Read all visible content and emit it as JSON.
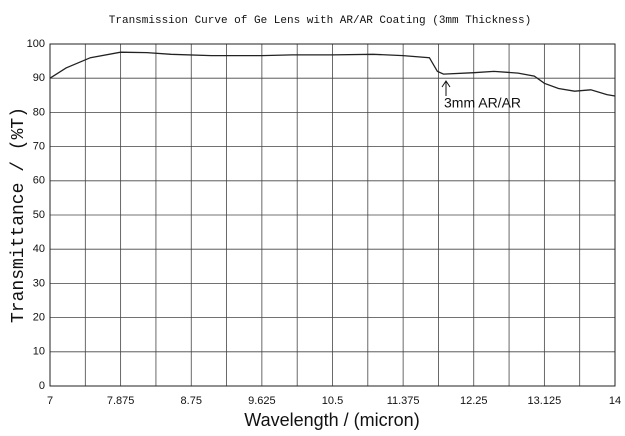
{
  "chart_data": {
    "type": "line",
    "title": "Transmission Curve of Ge Lens with AR/AR Coating (3mm Thickness)",
    "x_label": "Wavelength / (micron)",
    "y_label": "Transmittance / (%T)",
    "annotation": "3mm AR/AR",
    "annotation_color": "#e8a317",
    "x": [
      7,
      7.2,
      7.5,
      7.875,
      8.2,
      8.5,
      9,
      9.625,
      10,
      10.5,
      11,
      11.375,
      11.7,
      11.8,
      11.875,
      12.25,
      12.5,
      12.8,
      13.0,
      13.125,
      13.3,
      13.5,
      13.7,
      13.9,
      14
    ],
    "series": [
      {
        "name": "3mm AR/AR",
        "color": "#222222",
        "values": [
          90,
          93,
          96,
          97.6,
          97.5,
          97,
          96.6,
          96.6,
          96.8,
          96.8,
          97,
          96.6,
          96,
          92,
          91.2,
          91.6,
          92,
          91.5,
          90.6,
          88.5,
          87,
          86.2,
          86.6,
          85.2,
          84.8
        ]
      }
    ],
    "xlim": [
      7,
      14
    ],
    "xticks": [
      7,
      7.875,
      8.75,
      9.625,
      10.5,
      11.375,
      12.25,
      13.125,
      14
    ],
    "ylim": [
      0,
      100
    ],
    "yticks": [
      0,
      10,
      20,
      30,
      40,
      50,
      60,
      70,
      80,
      90,
      100
    ],
    "grid": true
  }
}
